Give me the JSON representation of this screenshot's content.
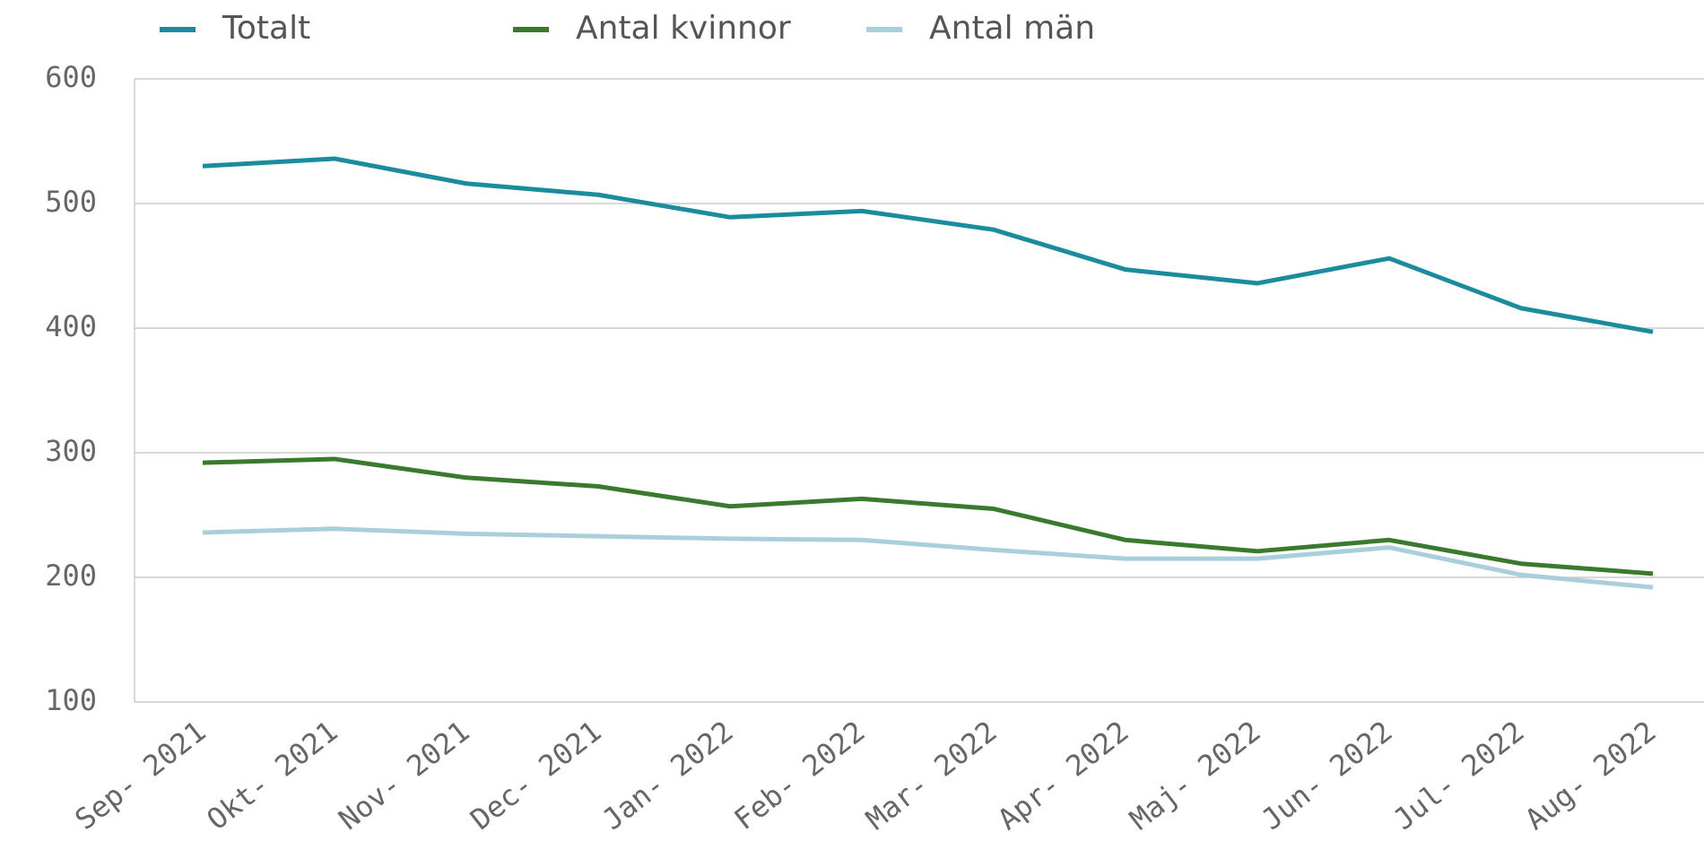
{
  "chart_data": {
    "type": "line",
    "categories": [
      "Sep- 2021",
      "Okt- 2021",
      "Nov- 2021",
      "Dec- 2021",
      "Jan- 2022",
      "Feb- 2022",
      "Mar- 2022",
      "Apr- 2022",
      "Maj- 2022",
      "Jun- 2022",
      "Jul- 2022",
      "Aug- 2022"
    ],
    "series": [
      {
        "name": "Totalt",
        "color": "#1b8c9e",
        "values": [
          530,
          536,
          516,
          507,
          489,
          494,
          479,
          447,
          436,
          456,
          416,
          397
        ]
      },
      {
        "name": "Antal kvinnor",
        "color": "#3a7a2c",
        "values": [
          292,
          295,
          280,
          273,
          257,
          263,
          255,
          230,
          221,
          230,
          211,
          203
        ]
      },
      {
        "name": "Antal män",
        "color": "#a9cfdb",
        "values": [
          236,
          239,
          235,
          233,
          231,
          230,
          222,
          215,
          215,
          224,
          202,
          192
        ]
      }
    ],
    "ylim": [
      100,
      600
    ],
    "yticks": [
      100,
      200,
      300,
      400,
      500,
      600
    ],
    "grid": true,
    "legend": "top"
  }
}
